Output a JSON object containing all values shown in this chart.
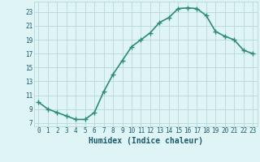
{
  "x": [
    0,
    1,
    2,
    3,
    4,
    5,
    6,
    7,
    8,
    9,
    10,
    11,
    12,
    13,
    14,
    15,
    16,
    17,
    18,
    19,
    20,
    21,
    22,
    23
  ],
  "y": [
    10.0,
    9.0,
    8.5,
    8.0,
    7.5,
    7.5,
    8.5,
    11.5,
    14.0,
    16.0,
    18.0,
    19.0,
    20.0,
    21.5,
    22.2,
    23.5,
    23.6,
    23.5,
    22.5,
    20.2,
    19.5,
    19.0,
    17.5,
    17.0
  ],
  "line_color": "#2d8b78",
  "marker_color": "#2d8b78",
  "bg_color": "#dff4f4",
  "grid_color": "#b8d8d8",
  "axis_label_color": "#1a5a6e",
  "tick_label_color": "#1a5a6e",
  "xlabel": "Humidex (Indice chaleur)",
  "xlim": [
    -0.5,
    23.5
  ],
  "ylim": [
    6.5,
    24.5
  ],
  "yticks": [
    7,
    9,
    11,
    13,
    15,
    17,
    19,
    21,
    23
  ],
  "xticks": [
    0,
    1,
    2,
    3,
    4,
    5,
    6,
    7,
    8,
    9,
    10,
    11,
    12,
    13,
    14,
    15,
    16,
    17,
    18,
    19,
    20,
    21,
    22,
    23
  ],
  "marker": "+",
  "markersize": 4,
  "linewidth": 1.2,
  "tick_fontsize": 5.5,
  "xlabel_fontsize": 7.0
}
